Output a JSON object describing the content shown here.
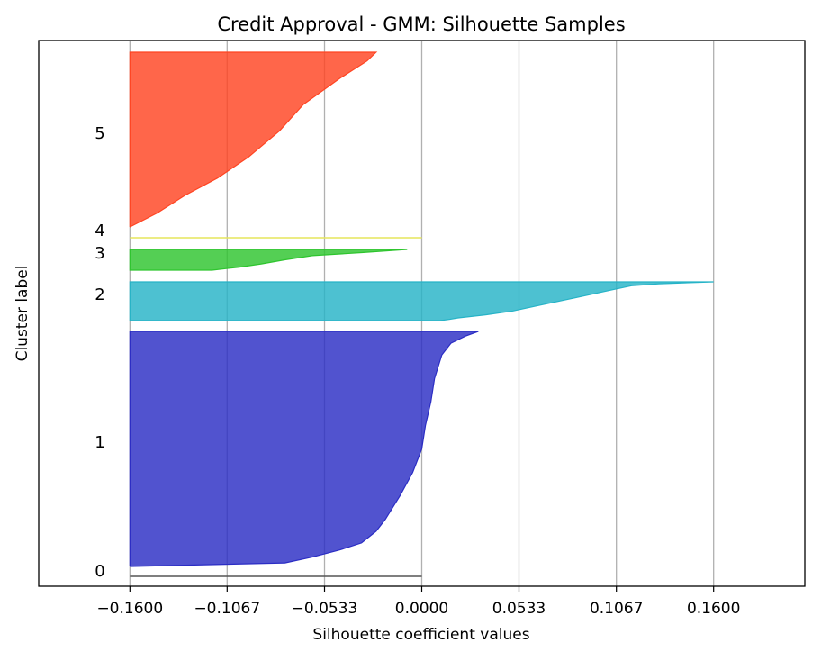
{
  "chart_data": {
    "type": "area",
    "title": "Credit Approval - GMM: Silhouette Samples",
    "xlabel": "Silhouette coefficient values",
    "ylabel": "Cluster label",
    "xlim": [
      -0.21,
      0.21
    ],
    "x_ticks": [
      -0.16,
      -0.1067,
      -0.0533,
      0.0,
      0.0533,
      0.1067,
      0.16
    ],
    "x_tick_labels": [
      "−0.1600",
      "−0.1067",
      "−0.0533",
      "0.0000",
      "0.0533",
      "0.1067",
      "0.1600"
    ],
    "grid": "vertical",
    "clusters": [
      {
        "label": "0",
        "color": "#555555",
        "silhouette_profile": [
          [
            0.0,
            0.0
          ],
          [
            1.0,
            0.0
          ]
        ]
      },
      {
        "label": "1",
        "color": "#2b2dc4",
        "silhouette_profile": [
          [
            0.0,
            0.031
          ],
          [
            0.02,
            0.024
          ],
          [
            0.05,
            0.016
          ],
          [
            0.1,
            0.011
          ],
          [
            0.2,
            0.007
          ],
          [
            0.3,
            0.005
          ],
          [
            0.4,
            0.002
          ],
          [
            0.5,
            0.0
          ],
          [
            0.6,
            -0.005
          ],
          [
            0.7,
            -0.012
          ],
          [
            0.8,
            -0.02
          ],
          [
            0.85,
            -0.025
          ],
          [
            0.9,
            -0.033
          ],
          [
            0.93,
            -0.045
          ],
          [
            0.96,
            -0.06
          ],
          [
            0.985,
            -0.075
          ],
          [
            1.0,
            -0.16
          ]
        ]
      },
      {
        "label": "2",
        "color": "#26b3c7",
        "silhouette_profile": [
          [
            0.0,
            0.16
          ],
          [
            0.05,
            0.13
          ],
          [
            0.1,
            0.115
          ],
          [
            0.2,
            0.105
          ],
          [
            0.3,
            0.095
          ],
          [
            0.45,
            0.08
          ],
          [
            0.6,
            0.065
          ],
          [
            0.75,
            0.05
          ],
          [
            0.85,
            0.035
          ],
          [
            0.93,
            0.02
          ],
          [
            0.97,
            0.015
          ],
          [
            1.0,
            0.01
          ]
        ]
      },
      {
        "label": "3",
        "color": "#2ec52e",
        "silhouette_profile": [
          [
            0.0,
            -0.008
          ],
          [
            0.15,
            -0.032
          ],
          [
            0.3,
            -0.06
          ],
          [
            0.5,
            -0.075
          ],
          [
            0.7,
            -0.088
          ],
          [
            0.85,
            -0.1
          ],
          [
            1.0,
            -0.115
          ]
        ]
      },
      {
        "label": "4",
        "color": "#e6e65c",
        "silhouette_profile": [
          [
            0.0,
            0.0
          ],
          [
            1.0,
            0.0
          ]
        ]
      },
      {
        "label": "5",
        "color": "#ff4422",
        "silhouette_profile": [
          [
            0.0,
            -0.025
          ],
          [
            0.05,
            -0.03
          ],
          [
            0.15,
            -0.045
          ],
          [
            0.3,
            -0.065
          ],
          [
            0.45,
            -0.078
          ],
          [
            0.6,
            -0.095
          ],
          [
            0.72,
            -0.112
          ],
          [
            0.82,
            -0.13
          ],
          [
            0.92,
            -0.145
          ],
          [
            1.0,
            -0.16
          ]
        ]
      }
    ]
  }
}
